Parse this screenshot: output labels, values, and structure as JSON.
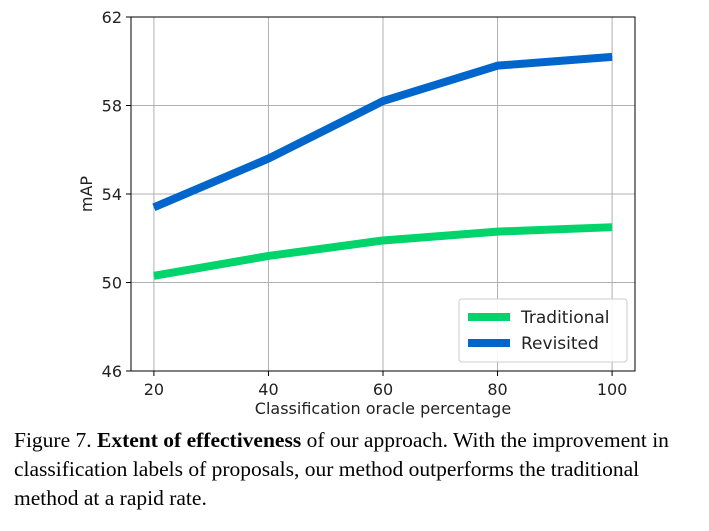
{
  "chart_data": {
    "type": "line",
    "xlabel": "Classification oracle percentage",
    "ylabel": "mAP",
    "x": [
      20,
      40,
      60,
      80,
      100
    ],
    "xticks": [
      "20",
      "40",
      "60",
      "80",
      "100"
    ],
    "yticks": [
      "46",
      "50",
      "54",
      "58",
      "62"
    ],
    "xlim": [
      16,
      104
    ],
    "ylim": [
      46,
      62
    ],
    "grid": true,
    "legend_position": "lower-right",
    "series": [
      {
        "name": "Traditional",
        "values": [
          50.3,
          51.2,
          51.9,
          52.3,
          52.5
        ],
        "color": "#00d46a"
      },
      {
        "name": "Revisited",
        "values": [
          53.4,
          55.6,
          58.2,
          59.8,
          60.2
        ],
        "color": "#0066cc"
      }
    ]
  },
  "caption": {
    "prefix": "Figure 7. ",
    "bold": "Extent of effectiveness",
    "rest": " of our approach. With the improvement in classification labels of proposals, our method outperforms the traditional method at a rapid rate."
  }
}
